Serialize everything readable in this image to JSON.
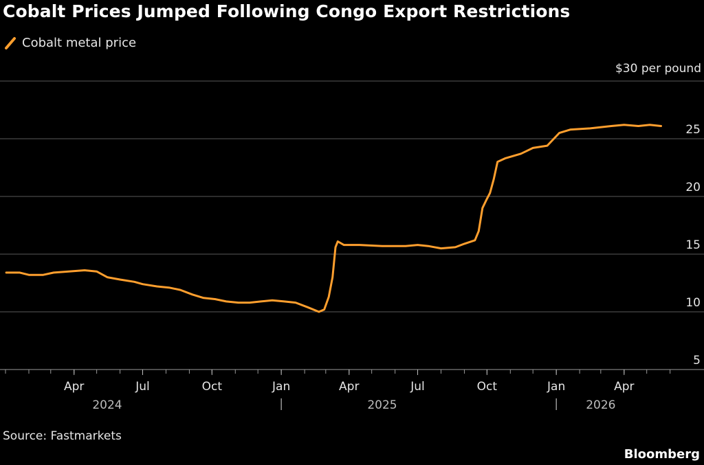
{
  "title": "Cobalt Prices Jumped Following Congo Export Restrictions",
  "source": "Source: Fastmarkets",
  "brand": "Bloomberg",
  "chart_data": {
    "type": "line",
    "unit_label": "$30 per pound",
    "y_axis": {
      "min": 5,
      "max": 30,
      "ticks": [
        5,
        10,
        15,
        20,
        25,
        30
      ],
      "tick_labels": [
        "5",
        "10",
        "15",
        "20",
        "25",
        ""
      ]
    },
    "x_axis": {
      "start": "2024-01-01",
      "end": "2026-06-15",
      "ticks": [
        {
          "date": "2024-04-01",
          "label": "Apr"
        },
        {
          "date": "2024-07-01",
          "label": "Jul"
        },
        {
          "date": "2024-10-01",
          "label": "Oct"
        },
        {
          "date": "2025-01-01",
          "label": "Jan"
        },
        {
          "date": "2025-04-01",
          "label": "Apr"
        },
        {
          "date": "2025-07-01",
          "label": "Jul"
        },
        {
          "date": "2025-10-01",
          "label": "Oct"
        },
        {
          "date": "2026-01-01",
          "label": "Jan"
        },
        {
          "date": "2026-04-01",
          "label": "Apr"
        }
      ],
      "years": [
        {
          "date": "2024-05-15",
          "label": "2024"
        },
        {
          "date": "2025-05-15",
          "label": "2025"
        },
        {
          "date": "2026-03-01",
          "label": "2026"
        }
      ],
      "year_separators": [
        "2025-01-01",
        "2026-01-01"
      ]
    },
    "grid": true,
    "legend": "top-left",
    "series": [
      {
        "name": "Cobalt metal price",
        "color": "#ff9f2e",
        "points": [
          [
            "2024-01-02",
            13.4
          ],
          [
            "2024-01-20",
            13.4
          ],
          [
            "2024-02-01",
            13.2
          ],
          [
            "2024-02-20",
            13.2
          ],
          [
            "2024-03-05",
            13.4
          ],
          [
            "2024-03-25",
            13.5
          ],
          [
            "2024-04-15",
            13.6
          ],
          [
            "2024-05-01",
            13.5
          ],
          [
            "2024-05-15",
            13.0
          ],
          [
            "2024-06-01",
            12.8
          ],
          [
            "2024-06-20",
            12.6
          ],
          [
            "2024-07-01",
            12.4
          ],
          [
            "2024-07-20",
            12.2
          ],
          [
            "2024-08-05",
            12.1
          ],
          [
            "2024-08-20",
            11.9
          ],
          [
            "2024-09-05",
            11.5
          ],
          [
            "2024-09-20",
            11.2
          ],
          [
            "2024-10-05",
            11.1
          ],
          [
            "2024-10-20",
            10.9
          ],
          [
            "2024-11-05",
            10.8
          ],
          [
            "2024-11-20",
            10.8
          ],
          [
            "2024-12-05",
            10.9
          ],
          [
            "2024-12-20",
            11.0
          ],
          [
            "2025-01-05",
            10.9
          ],
          [
            "2025-01-20",
            10.8
          ],
          [
            "2025-02-05",
            10.4
          ],
          [
            "2025-02-20",
            10.0
          ],
          [
            "2025-02-27",
            10.2
          ],
          [
            "2025-03-05",
            11.3
          ],
          [
            "2025-03-10",
            13.0
          ],
          [
            "2025-03-14",
            15.6
          ],
          [
            "2025-03-17",
            16.1
          ],
          [
            "2025-03-25",
            15.8
          ],
          [
            "2025-04-15",
            15.8
          ],
          [
            "2025-05-15",
            15.7
          ],
          [
            "2025-06-15",
            15.7
          ],
          [
            "2025-07-01",
            15.8
          ],
          [
            "2025-07-15",
            15.7
          ],
          [
            "2025-08-01",
            15.5
          ],
          [
            "2025-08-20",
            15.6
          ],
          [
            "2025-09-01",
            15.9
          ],
          [
            "2025-09-15",
            16.2
          ],
          [
            "2025-09-20",
            17.0
          ],
          [
            "2025-09-25",
            19.0
          ],
          [
            "2025-10-01",
            19.8
          ],
          [
            "2025-10-05",
            20.3
          ],
          [
            "2025-10-10",
            21.5
          ],
          [
            "2025-10-15",
            23.0
          ],
          [
            "2025-10-25",
            23.3
          ],
          [
            "2025-11-15",
            23.7
          ],
          [
            "2025-12-01",
            24.2
          ],
          [
            "2025-12-20",
            24.4
          ],
          [
            "2026-01-05",
            25.5
          ],
          [
            "2026-01-20",
            25.8
          ],
          [
            "2026-02-15",
            25.9
          ],
          [
            "2026-03-15",
            26.1
          ],
          [
            "2026-04-01",
            26.2
          ],
          [
            "2026-04-20",
            26.1
          ],
          [
            "2026-05-05",
            26.2
          ],
          [
            "2026-05-20",
            26.1
          ]
        ]
      }
    ]
  }
}
